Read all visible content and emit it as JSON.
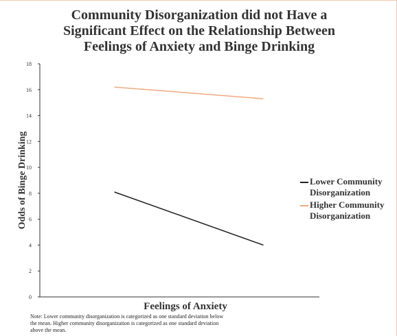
{
  "chart_data": {
    "type": "line",
    "title": "Community Disorganization did not Have a Significant Effect on the Relationship Between Feelings of Anxiety and Binge Drinking",
    "x_label": "Feelings of Anxiety",
    "y_label": "Odds of Binge Drinking",
    "note": "Note: Lower community disorganization is categorized as one standard deviation below the mean. Higher community disorganization is categorized as one standard deviation above the mean.",
    "categories": [
      null,
      null
    ],
    "series": [
      {
        "name": "Lower Community Disorganization",
        "color": "#222222",
        "values": [
          8.1,
          4.0
        ]
      },
      {
        "name": "Higher Community Disorganization",
        "color": "#f0a882",
        "values": [
          16.2,
          15.3
        ]
      }
    ],
    "ylim": [
      0,
      18
    ],
    "yticks": [
      0,
      2,
      4,
      6,
      8,
      10,
      12,
      14,
      16,
      18
    ],
    "grid": false,
    "legend": "right"
  }
}
